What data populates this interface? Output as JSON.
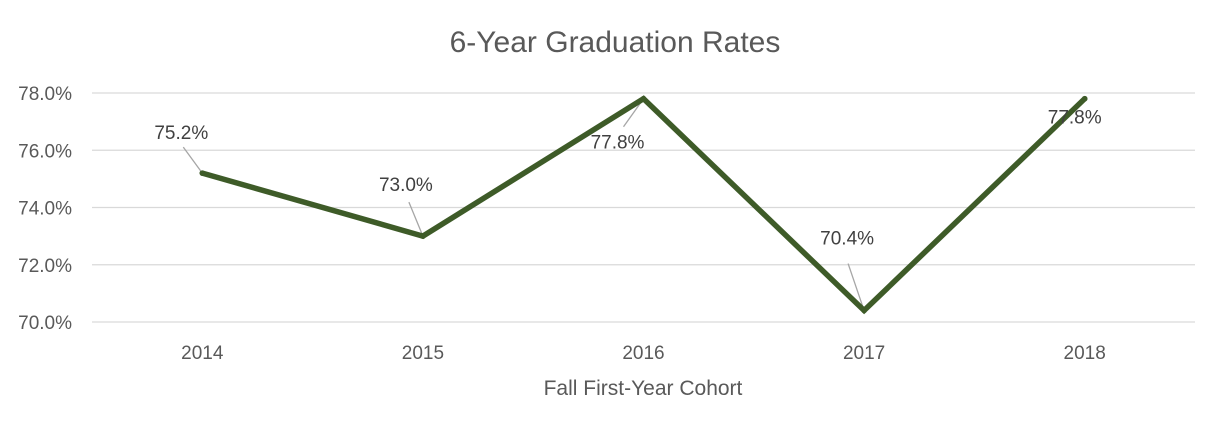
{
  "chart_data": {
    "type": "line",
    "title": "6-Year Graduation Rates",
    "xlabel": "Fall First-Year Cohort",
    "ylabel": "",
    "categories": [
      "2014",
      "2015",
      "2016",
      "2017",
      "2018"
    ],
    "series": [
      {
        "values": [
          75.2,
          73.0,
          77.8,
          70.4,
          77.8
        ],
        "data_labels": [
          "75.2%",
          "73.0%",
          "77.8%",
          "70.4%",
          "77.8%"
        ],
        "color": "#3e5b28"
      }
    ],
    "ylim": [
      70,
      78
    ],
    "yticks": [
      70,
      72,
      74,
      76,
      78
    ],
    "ytick_labels": [
      "70.0%",
      "72.0%",
      "74.0%",
      "76.0%",
      "78.0%"
    ],
    "grid": true,
    "legend": "none"
  }
}
